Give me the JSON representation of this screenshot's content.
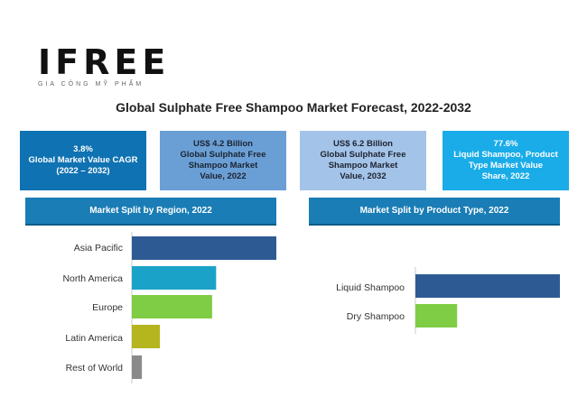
{
  "logo": {
    "mark": "IFREE",
    "tagline": "GIA CÔNG MỸ PHẨM"
  },
  "title": "Global Sulphate Free Shampoo Market Forecast, 2022-2032",
  "kpis": [
    {
      "lines": [
        "3.8%",
        "Global Market Value CAGR",
        "(2022 – 2032)"
      ]
    },
    {
      "lines": [
        "US$ 4.2 Billion",
        "Global Sulphate Free",
        "Shampoo Market",
        "Value, 2022"
      ]
    },
    {
      "lines": [
        "US$ 6.2 Billion",
        "Global Sulphate Free",
        "Shampoo Market",
        "Value, 2032"
      ]
    },
    {
      "lines": [
        "77.6%",
        "Liquid Shampoo, Product",
        "Type Market Value",
        "Share, 2022"
      ]
    }
  ],
  "sections": {
    "region": "Market Split by Region, 2022",
    "product": "Market Split by Product Type, 2022"
  },
  "colors": {
    "asia_pacific": "#2e5a94",
    "north_america": "#1ba2c8",
    "europe": "#7fcc45",
    "latin_america": "#b5b520",
    "rest_of_world": "#8a8a8a",
    "liquid_shampoo": "#2e5a94",
    "dry_shampoo": "#7fcc45"
  },
  "chart_data": [
    {
      "type": "bar",
      "orientation": "horizontal",
      "title": "Market Split by Region, 2022",
      "categories": [
        "Asia Pacific",
        "North America",
        "Europe",
        "Latin America",
        "Rest of World"
      ],
      "values": [
        36,
        21,
        20,
        7,
        2.5
      ],
      "xlim": [
        0,
        36
      ],
      "unit": "relative share (estimated)"
    },
    {
      "type": "bar",
      "orientation": "horizontal",
      "title": "Market Split by Product Type, 2022",
      "categories": [
        "Liquid Shampoo",
        "Dry Shampoo"
      ],
      "values": [
        77.6,
        22.4
      ],
      "xlim": [
        0,
        77.6
      ],
      "unit": "%"
    }
  ]
}
